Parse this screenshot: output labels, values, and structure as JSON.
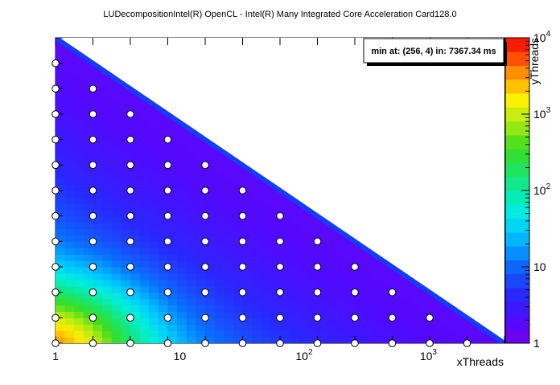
{
  "chart_data": {
    "type": "heatmap",
    "title": "LUDecompositionIntel(R) OpenCL - Intel(R) Many Integrated Core Acceleration Card128.0",
    "xlabel": "xThreads",
    "ylabel": "yThreads",
    "x_scale": "log2",
    "y_scale": "log2",
    "xlim": [
      1,
      4096
    ],
    "ylim": [
      1,
      4096
    ],
    "x_tick_labels": [
      {
        "value": 1,
        "base": "1",
        "exp": ""
      },
      {
        "value": 10,
        "base": "10",
        "exp": ""
      },
      {
        "value": 100,
        "base": "10",
        "exp": "2"
      },
      {
        "value": 1000,
        "base": "10",
        "exp": "3"
      }
    ],
    "annotation": "min at: (256, 4) in: 7367.34 ms",
    "colorbar": {
      "scale": "log",
      "range": [
        1,
        10000
      ],
      "tick_labels": [
        {
          "value": 1,
          "base": "1",
          "exp": ""
        },
        {
          "value": 10,
          "base": "10",
          "exp": ""
        },
        {
          "value": 100,
          "base": "10",
          "exp": "2"
        },
        {
          "value": 1000,
          "base": "10",
          "exp": "3"
        },
        {
          "value": 10000,
          "base": "10",
          "exp": "4"
        }
      ]
    },
    "sample_points": "all (x, y) with x = 2^i, y = 2^j, i + j <= 12",
    "feasible_region": "x * y <= 4096",
    "minimum": {
      "x": 256,
      "y": 4,
      "value": 7367.34,
      "unit": "ms"
    }
  }
}
